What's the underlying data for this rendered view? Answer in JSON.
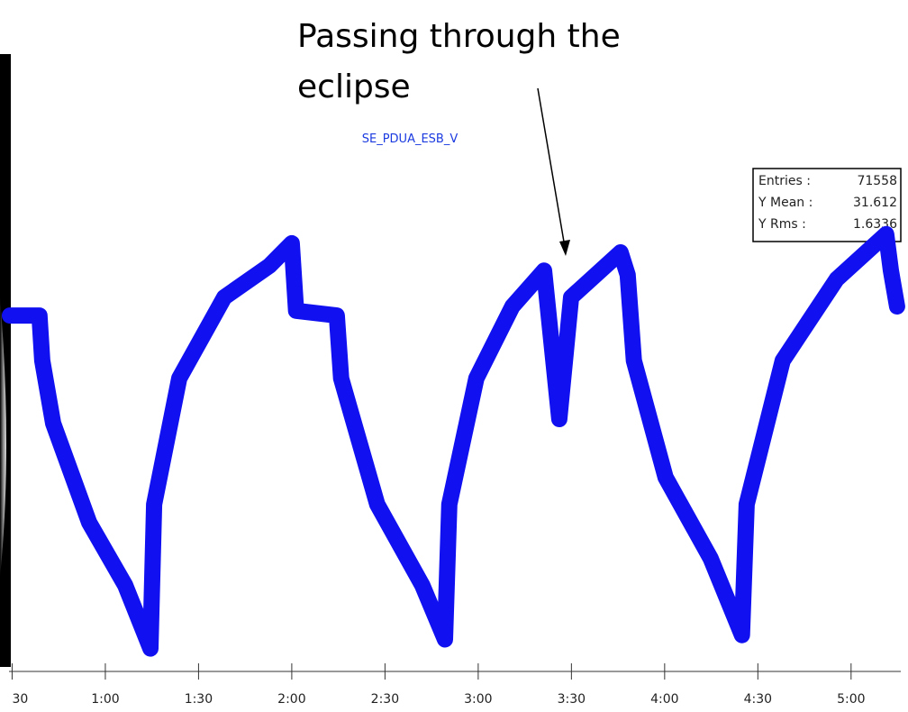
{
  "chart_data": {
    "type": "line",
    "title": "SE_PDUA_ESB_V",
    "annotation": [
      "Passing through the",
      "eclipse"
    ],
    "stats": [
      {
        "label": "Entries :",
        "value": "71558"
      },
      {
        "label": "Y Mean :",
        "value": "31.612"
      },
      {
        "label": "Y Rms :",
        "value": "1.6336"
      }
    ],
    "xlim": [
      29,
      316
    ],
    "ylim": [
      25.5,
      35
    ],
    "xticks": [
      {
        "value": 30,
        "label": "30"
      },
      {
        "value": 60,
        "label": "1:00"
      },
      {
        "value": 90,
        "label": "1:30"
      },
      {
        "value": 120,
        "label": "2:00"
      },
      {
        "value": 150,
        "label": "2:30"
      },
      {
        "value": 180,
        "label": "3:00"
      },
      {
        "value": 210,
        "label": "3:30"
      },
      {
        "value": 240,
        "label": "4:00"
      },
      {
        "value": 270,
        "label": "4:30"
      },
      {
        "value": 300,
        "label": "5:00"
      }
    ],
    "series": [
      {
        "color": "#1010f0",
        "x": [
          29.3,
          38.8,
          39.7,
          43.2,
          54.8,
          66.4,
          74.5,
          75.7,
          83.8,
          98.3,
          112.8,
          120.0,
          121.4,
          134.5,
          135.9,
          147.5,
          162.0,
          169.3,
          170.7,
          179.4,
          191.0,
          201.2,
          206.1,
          209.9,
          225.8,
          228.1,
          230.1,
          240.3,
          254.8,
          264.9,
          266.4,
          278.0,
          295.4,
          311.3,
          312.8,
          314.8
        ],
        "values": [
          32.74,
          32.74,
          31.8,
          30.49,
          28.42,
          27.11,
          25.79,
          28.8,
          31.43,
          33.12,
          33.78,
          34.25,
          32.84,
          32.74,
          31.43,
          28.8,
          27.11,
          25.98,
          28.8,
          31.43,
          32.93,
          33.68,
          30.58,
          33.12,
          34.06,
          33.59,
          31.8,
          29.36,
          27.67,
          26.07,
          28.8,
          31.8,
          33.5,
          34.44,
          33.68,
          32.93
        ]
      }
    ]
  }
}
